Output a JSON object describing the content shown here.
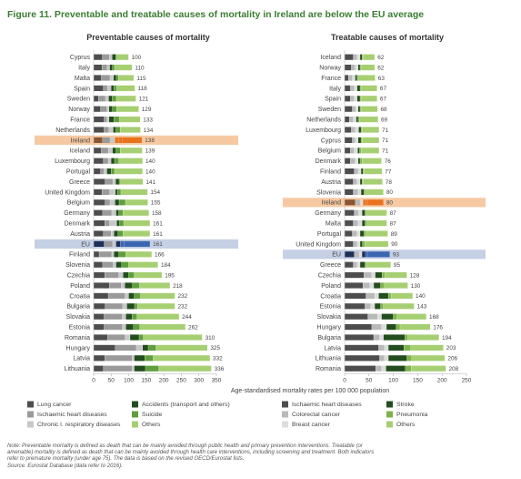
{
  "figure_title": "Figure 11. Preventable and treatable causes of mortality in Ireland are below the EU average",
  "notes": [
    "Note: Preventable mortality is defined as death that can be mainly avoided through public health and primary prevention interventions. Treatable (or",
    "amenable) mortality is defined as death that can be mainly avoided through health care interventions, including screening and treatment. Both indicators",
    "refer to premature mortality (under age 75). The data is based on the revised OECD/Eurostat lists.",
    "Source: Eurostat Database (data refer to 2016)."
  ],
  "colors": {
    "lung_cancer": "#4d4d4d",
    "ischaemic_heart_diseases": "#9a9a9a",
    "chronic_respiratory": "#c8c8c8",
    "accidents": "#234d1e",
    "suicide": "#5f9e3c",
    "others": "#a6cf72",
    "stroke": "#2f6a2a",
    "colorectal_cancer": "#b9b9b9",
    "pneumonia": "#7eb34b",
    "breast_cancer": "#dddddd",
    "ireland_highlight": "#f6c9a2",
    "ireland_bar_accent": "#e8731e",
    "ireland_bar_dark": "#8a5532",
    "eu_highlight": "#c5d0e5",
    "eu_bar_accent": "#3a66b0",
    "eu_bar_dark": "#1d2f55"
  },
  "chart_data": [
    {
      "type": "bar",
      "orientation": "horizontal",
      "stacked": true,
      "title": "Preventable causes of mortality",
      "xlabel": "",
      "xlim": [
        0,
        350
      ],
      "xticks": [
        0,
        50,
        100,
        150,
        200,
        250,
        300,
        350
      ],
      "highlight": [
        "Ireland",
        "EU"
      ],
      "categories": [
        "Cyprus",
        "Italy",
        "Malta",
        "Spain",
        "Sweden",
        "Norway",
        "France",
        "Netherlands",
        "Ireland",
        "Iceland",
        "Luxembourg",
        "Portugal",
        "Greece",
        "United Kingdom",
        "Belgium",
        "Germany",
        "Denmark",
        "Austria",
        "EU",
        "Finland",
        "Slovenia",
        "Czechia",
        "Poland",
        "Croatia",
        "Bulgaria",
        "Slovakia",
        "Estonia",
        "Romania",
        "Hungary",
        "Latvia",
        "Lithuania"
      ],
      "totals": [
        100,
        110,
        115,
        118,
        121,
        129,
        133,
        134,
        138,
        139,
        140,
        140,
        141,
        154,
        155,
        158,
        161,
        161,
        161,
        166,
        184,
        195,
        218,
        232,
        232,
        244,
        262,
        310,
        325,
        332,
        336
      ],
      "series": [
        {
          "name": "Lung cancer",
          "color_key": "lung_cancer",
          "values": [
            25,
            24,
            22,
            28,
            14,
            20,
            30,
            30,
            25,
            22,
            28,
            20,
            33,
            24,
            33,
            26,
            32,
            28,
            30,
            16,
            26,
            32,
            45,
            42,
            33,
            30,
            30,
            40,
            62,
            32,
            28
          ]
        },
        {
          "name": "Ischaemic heart diseases",
          "color_key": "ischaemic_heart_diseases",
          "values": [
            20,
            15,
            25,
            12,
            20,
            18,
            8,
            14,
            22,
            20,
            14,
            10,
            22,
            22,
            14,
            26,
            14,
            22,
            24,
            36,
            30,
            40,
            34,
            48,
            50,
            52,
            52,
            50,
            60,
            78,
            82
          ]
        },
        {
          "name": "Chronic l. respiratory diseases",
          "color_key": "chronic_respiratory",
          "values": [
            8,
            7,
            10,
            10,
            9,
            6,
            6,
            12,
            14,
            12,
            8,
            8,
            8,
            16,
            14,
            12,
            20,
            8,
            10,
            6,
            8,
            12,
            10,
            10,
            12,
            10,
            10,
            14,
            18,
            6,
            6
          ]
        },
        {
          "name": "Accidents (transport and others)",
          "color_key": "accidents",
          "values": [
            10,
            8,
            8,
            8,
            10,
            10,
            14,
            8,
            10,
            10,
            10,
            12,
            10,
            6,
            12,
            8,
            8,
            12,
            12,
            14,
            16,
            16,
            22,
            16,
            22,
            18,
            22,
            26,
            16,
            30,
            32
          ]
        },
        {
          "name": "Suicide",
          "color_key": "suicide",
          "values": [
            4,
            6,
            6,
            8,
            12,
            12,
            16,
            12,
            12,
            12,
            12,
            10,
            4,
            10,
            18,
            12,
            12,
            14,
            12,
            20,
            20,
            16,
            20,
            18,
            8,
            14,
            18,
            12,
            22,
            24,
            38
          ]
        },
        {
          "name": "Others",
          "color_key": "others",
          "values": [
            33,
            50,
            44,
            52,
            56,
            63,
            59,
            58,
            55,
            63,
            68,
            80,
            64,
            76,
            64,
            74,
            75,
            77,
            73,
            74,
            84,
            79,
            87,
            98,
            107,
            120,
            130,
            168,
            147,
            162,
            150
          ]
        }
      ]
    },
    {
      "type": "bar",
      "orientation": "horizontal",
      "stacked": true,
      "title": "Treatable causes of mortality",
      "xlabel": "",
      "xlim": [
        0,
        250
      ],
      "xticks": [
        0,
        50,
        100,
        150,
        200,
        250
      ],
      "highlight": [
        "Ireland",
        "EU"
      ],
      "categories": [
        "Iceland",
        "Norway",
        "France",
        "Italy",
        "Spain",
        "Sweden",
        "Netherlands",
        "Luxembourg",
        "Cyprus",
        "Belgium",
        "Denmark",
        "Finland",
        "Austria",
        "Slovenia",
        "Ireland",
        "Germany",
        "Malta",
        "Portugal",
        "United Kingdom",
        "EU",
        "Greece",
        "Czechia",
        "Poland",
        "Croatia",
        "Estonia",
        "Slovakia",
        "Hungary",
        "Bulgaria",
        "Latvia",
        "Lithuania",
        "Romania"
      ],
      "totals": [
        62,
        62,
        63,
        67,
        67,
        68,
        69,
        71,
        71,
        71,
        76,
        77,
        78,
        80,
        80,
        87,
        87,
        89,
        90,
        93,
        95,
        128,
        130,
        140,
        143,
        168,
        176,
        194,
        203,
        206,
        208
      ],
      "series": [
        {
          "name": "Ischaemic heart diseases",
          "color_key": "lung_cancer",
          "values": [
            18,
            14,
            8,
            12,
            12,
            16,
            10,
            14,
            16,
            12,
            12,
            20,
            18,
            18,
            22,
            20,
            18,
            16,
            18,
            20,
            18,
            40,
            38,
            44,
            42,
            48,
            56,
            60,
            70,
            72,
            64
          ]
        },
        {
          "name": "Colorectal cancer",
          "color_key": "colorectal_cancer",
          "values": [
            8,
            8,
            8,
            8,
            8,
            7,
            8,
            8,
            6,
            8,
            10,
            8,
            8,
            10,
            10,
            9,
            10,
            10,
            8,
            10,
            8,
            16,
            14,
            18,
            12,
            20,
            20,
            12,
            12,
            10,
            12
          ]
        },
        {
          "name": "Breast cancer",
          "color_key": "breast_cancer",
          "values": [
            6,
            6,
            6,
            6,
            6,
            5,
            6,
            7,
            6,
            7,
            6,
            6,
            6,
            6,
            6,
            7,
            8,
            6,
            6,
            6,
            6,
            7,
            8,
            8,
            8,
            8,
            10,
            8,
            8,
            8,
            9
          ]
        },
        {
          "name": "Stroke",
          "color_key": "accidents",
          "values": [
            4,
            4,
            4,
            6,
            6,
            4,
            4,
            5,
            6,
            4,
            4,
            4,
            4,
            6,
            5,
            6,
            6,
            8,
            5,
            7,
            10,
            14,
            14,
            20,
            12,
            24,
            20,
            44,
            32,
            38,
            40
          ]
        },
        {
          "name": "Pneumonia",
          "color_key": "pneumonia",
          "values": [
            2,
            2,
            2,
            2,
            2,
            2,
            3,
            2,
            2,
            3,
            4,
            2,
            2,
            3,
            4,
            3,
            4,
            4,
            5,
            4,
            3,
            6,
            8,
            6,
            6,
            8,
            8,
            6,
            14,
            10,
            12
          ]
        },
        {
          "name": "Others",
          "color_key": "others",
          "values": [
            24,
            28,
            35,
            33,
            33,
            34,
            38,
            35,
            35,
            37,
            40,
            37,
            40,
            37,
            33,
            42,
            41,
            45,
            48,
            46,
            50,
            45,
            48,
            44,
            63,
            60,
            62,
            64,
            67,
            68,
            71
          ]
        }
      ]
    }
  ],
  "shared_xlabel": "Age-standardised mortality rates per 100 000 population",
  "legend": [
    {
      "label": "Lung cancer",
      "color_key": "lung_cancer"
    },
    {
      "label": "Accidents (transport and others)",
      "color_key": "accidents"
    },
    {
      "label": "Ischaemic heart diseases",
      "color_key": "lung_cancer"
    },
    {
      "label": "Stroke",
      "color_key": "accidents"
    },
    {
      "label": "Ischaemic heart diseases",
      "color_key": "ischaemic_heart_diseases"
    },
    {
      "label": "Suicide",
      "color_key": "suicide"
    },
    {
      "label": "Colorectal cancer",
      "color_key": "colorectal_cancer"
    },
    {
      "label": "Pneumonia",
      "color_key": "pneumonia"
    },
    {
      "label": "Chronic l. respiratory diseases",
      "color_key": "chronic_respiratory"
    },
    {
      "label": "Others",
      "color_key": "others"
    },
    {
      "label": "Breast cancer",
      "color_key": "breast_cancer"
    },
    {
      "label": "Others",
      "color_key": "others"
    }
  ]
}
